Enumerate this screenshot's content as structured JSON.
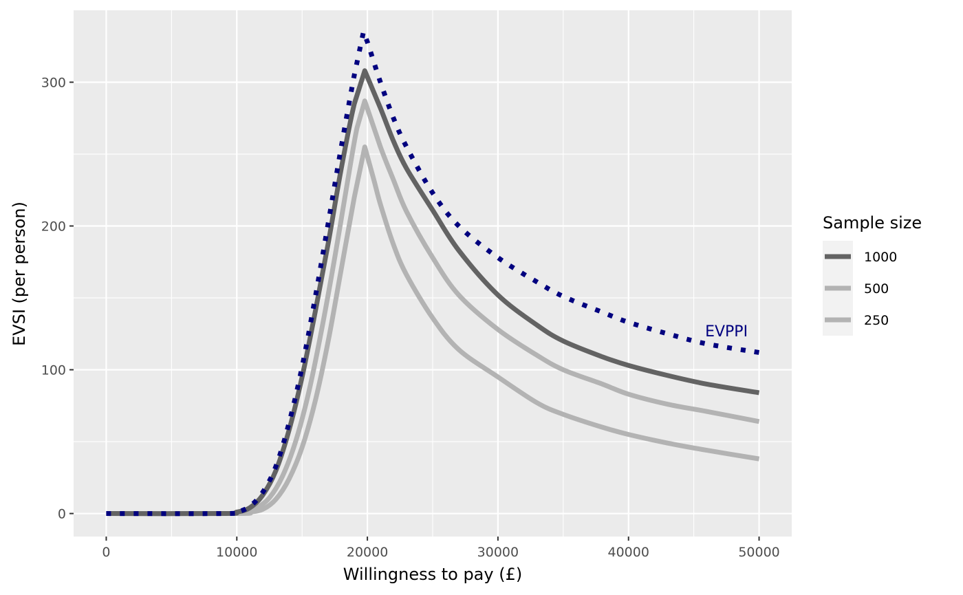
{
  "chart_data": {
    "type": "line",
    "xlabel": "Willingness to pay (£)",
    "ylabel": "EVSI (per person)",
    "xlim": [
      -2500,
      52500
    ],
    "ylim": [
      -16,
      350
    ],
    "x_ticks": [
      0,
      10000,
      20000,
      30000,
      40000,
      50000
    ],
    "x_tick_labels": [
      "0",
      "10000",
      "20000",
      "30000",
      "40000",
      "50000"
    ],
    "y_ticks": [
      0,
      100,
      200,
      300
    ],
    "y_tick_labels": [
      "0",
      "100",
      "200",
      "300"
    ],
    "grid": true,
    "legend": {
      "title": "Sample size",
      "position": "right"
    },
    "series": [
      {
        "name": "1000",
        "color": "#636363",
        "dash": "solid",
        "x": [
          0,
          9000,
          10000,
          11000,
          12000,
          13000,
          14000,
          15000,
          16000,
          17000,
          18000,
          19000,
          19800,
          21000,
          22000,
          23000,
          25000,
          27000,
          30000,
          33000,
          35000,
          38000,
          40000,
          43000,
          46000,
          50000
        ],
        "values": [
          0,
          0,
          1,
          4,
          13,
          30,
          58,
          95,
          140,
          188,
          240,
          285,
          308,
          282,
          259,
          240,
          211,
          183,
          152,
          131,
          120,
          109,
          103,
          96,
          90,
          84
        ]
      },
      {
        "name": "500",
        "color": "#b3b3b3",
        "dash": "solid",
        "x": [
          0,
          9500,
          10500,
          11500,
          12500,
          13500,
          14500,
          15500,
          16500,
          17500,
          18500,
          19200,
          19800,
          21000,
          22000,
          23000,
          25000,
          27000,
          30000,
          33000,
          35000,
          38000,
          40000,
          43000,
          46000,
          50000
        ],
        "values": [
          0,
          0,
          1,
          4,
          11,
          26,
          50,
          84,
          128,
          178,
          232,
          268,
          287,
          255,
          232,
          210,
          178,
          152,
          128,
          110,
          100,
          90,
          83,
          76,
          71,
          64
        ]
      },
      {
        "name": "250",
        "color": "#b3b3b3",
        "dash": "solid",
        "x": [
          0,
          10000,
          11000,
          12000,
          13000,
          14000,
          15000,
          16000,
          17000,
          18000,
          19000,
          19800,
          20500,
          21000,
          22000,
          23000,
          25000,
          27000,
          30000,
          33000,
          35000,
          38000,
          40000,
          43000,
          46000,
          50000
        ],
        "values": [
          0,
          0,
          1,
          3,
          10,
          24,
          46,
          78,
          120,
          170,
          220,
          255,
          232,
          215,
          187,
          166,
          136,
          114,
          95,
          77,
          69,
          60,
          55,
          49,
          44,
          38
        ]
      },
      {
        "name": "EVPPI",
        "color": "#00007f",
        "dash": "dotted",
        "label": "EVPPI",
        "x": [
          0,
          9000,
          10000,
          11000,
          12000,
          13000,
          14000,
          15000,
          16000,
          17000,
          18000,
          19000,
          19700,
          20000,
          21000,
          22000,
          23000,
          25000,
          27000,
          30000,
          33000,
          35000,
          38000,
          40000,
          43000,
          46000,
          50000
        ],
        "values": [
          0,
          0,
          1,
          5,
          15,
          33,
          63,
          102,
          150,
          202,
          255,
          305,
          335,
          328,
          300,
          275,
          255,
          223,
          200,
          178,
          161,
          151,
          140,
          133,
          125,
          118,
          112
        ]
      }
    ],
    "annotations": [
      {
        "text": "EVPPI",
        "x": 47500,
        "y": 127,
        "color": "#00007f"
      }
    ]
  }
}
